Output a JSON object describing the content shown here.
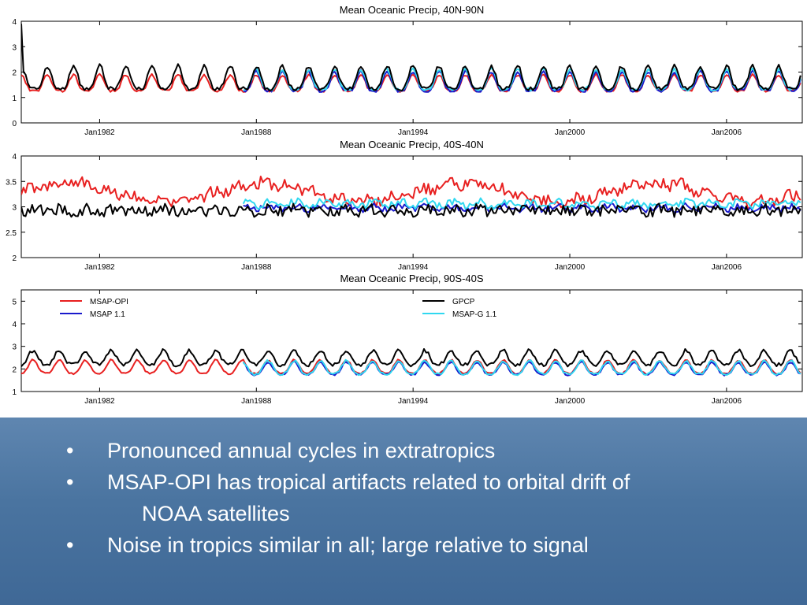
{
  "chart_data": [
    {
      "type": "line",
      "title": "Mean Oceanic Precip, 40N-90N",
      "xlim": [
        1979,
        2008.9
      ],
      "ylim": [
        0,
        4
      ],
      "yticks": [
        0,
        1,
        2,
        3,
        4
      ],
      "xtick_values": [
        1982,
        1988,
        1994,
        2000,
        2006
      ],
      "xtick_labels": [
        "Jan1982",
        "Jan1988",
        "Jan1994",
        "Jan2000",
        "Jan2006"
      ],
      "series": [
        {
          "name": "MSAP-OPI",
          "color": "#e82020",
          "model": {
            "start": 1979.0,
            "end": 2008.9,
            "base": 1.5,
            "amp": 0.32,
            "noise": 0.05,
            "phase": 0.0,
            "harm": 0.25
          }
        },
        {
          "name": "GPCP",
          "color": "#000000",
          "model": {
            "start": 1979.0,
            "end": 2008.9,
            "base": 1.68,
            "amp": 0.45,
            "noise": 0.08,
            "phase": 0.0,
            "harm": 0.25,
            "first": [
              3.9,
              2.0
            ]
          }
        },
        {
          "name": "MSAP 1.1",
          "color": "#1a1acc",
          "model": {
            "start": 1987.5,
            "end": 2008.9,
            "base": 1.55,
            "amp": 0.38,
            "noise": 0.06,
            "phase": 0.0,
            "harm": 0.25
          }
        },
        {
          "name": "MSAP-G 1.1",
          "color": "#30d8f0",
          "model": {
            "start": 1987.5,
            "end": 2008.9,
            "base": 1.62,
            "amp": 0.4,
            "noise": 0.06,
            "phase": 0.0,
            "harm": 0.25
          }
        }
      ]
    },
    {
      "type": "line",
      "title": "Mean Oceanic Precip, 40S-40N",
      "xlim": [
        1979,
        2008.9
      ],
      "ylim": [
        2,
        4
      ],
      "yticks": [
        2,
        2.5,
        3,
        3.5,
        4
      ],
      "xtick_values": [
        1982,
        1988,
        1994,
        2000,
        2006
      ],
      "xtick_labels": [
        "Jan1982",
        "Jan1988",
        "Jan1994",
        "Jan2000",
        "Jan2006"
      ],
      "series": [
        {
          "name": "MSAP-OPI",
          "color": "#e82020",
          "model": {
            "start": 1979.0,
            "end": 2008.9,
            "base": 3.28,
            "amp": 0.05,
            "noise": 0.11,
            "phase": 0.3,
            "harm": 0.0,
            "wobble": 0.18
          }
        },
        {
          "name": "GPCP",
          "color": "#000000",
          "model": {
            "start": 1979.0,
            "end": 2008.9,
            "base": 2.93,
            "amp": 0.03,
            "noise": 0.11,
            "phase": 0.5,
            "harm": 0.0
          }
        },
        {
          "name": "MSAP 1.1",
          "color": "#1a1acc",
          "model": {
            "start": 1987.5,
            "end": 2008.9,
            "base": 2.98,
            "amp": 0.04,
            "noise": 0.06,
            "phase": 0.5,
            "harm": 0.0
          }
        },
        {
          "name": "MSAP-G 1.1",
          "color": "#30d8f0",
          "model": {
            "start": 1987.5,
            "end": 2008.9,
            "base": 3.06,
            "amp": 0.05,
            "noise": 0.07,
            "phase": 0.5,
            "harm": 0.0
          }
        }
      ]
    },
    {
      "type": "line",
      "title": "Mean Oceanic Precip, 90S-40S",
      "xlim": [
        1979,
        2008.9
      ],
      "ylim": [
        1,
        5.5
      ],
      "yticks": [
        1,
        2,
        3,
        4,
        5
      ],
      "xtick_values": [
        1982,
        1988,
        1994,
        2000,
        2006
      ],
      "xtick_labels": [
        "Jan1982",
        "Jan1988",
        "Jan1994",
        "Jan2000",
        "Jan2006"
      ],
      "legend": {
        "placement": "top",
        "entries": [
          {
            "label": "MSAP-OPI",
            "color": "#e82020"
          },
          {
            "label": "MSAP 1.1",
            "color": "#1a1acc"
          },
          {
            "label": "GPCP",
            "color": "#000000"
          },
          {
            "label": "MSAP-G 1.1",
            "color": "#30d8f0"
          }
        ]
      },
      "series": [
        {
          "name": "MSAP-OPI",
          "color": "#e82020",
          "model": {
            "start": 1979.0,
            "end": 2008.9,
            "base": 2.05,
            "amp": 0.3,
            "noise": 0.04,
            "phase": 0.45,
            "harm": 0.15
          }
        },
        {
          "name": "GPCP",
          "color": "#000000",
          "model": {
            "start": 1979.0,
            "end": 2008.9,
            "base": 2.45,
            "amp": 0.32,
            "noise": 0.08,
            "phase": 0.45,
            "harm": 0.15
          }
        },
        {
          "name": "MSAP 1.1",
          "color": "#1a1acc",
          "model": {
            "start": 1987.5,
            "end": 2008.9,
            "base": 1.98,
            "amp": 0.28,
            "noise": 0.04,
            "phase": 0.45,
            "harm": 0.15
          }
        },
        {
          "name": "MSAP-G 1.1",
          "color": "#30d8f0",
          "model": {
            "start": 1987.5,
            "end": 2008.9,
            "base": 2.02,
            "amp": 0.3,
            "noise": 0.05,
            "phase": 0.45,
            "harm": 0.15
          }
        }
      ]
    }
  ],
  "bullets": [
    {
      "marker": "•",
      "text": "Pronounced annual cycles in extratropics"
    },
    {
      "marker": "•",
      "text": "MSAP-OPI has tropical artifacts related to orbital drift of",
      "continuation": "NOAA satellites"
    },
    {
      "marker": "•",
      "text": "Noise in tropics similar in all; large relative to signal"
    }
  ],
  "colors": {
    "panel_top": "#5f86b0",
    "panel_bottom": "#3f6896",
    "bullet_text": "#ffffff"
  }
}
